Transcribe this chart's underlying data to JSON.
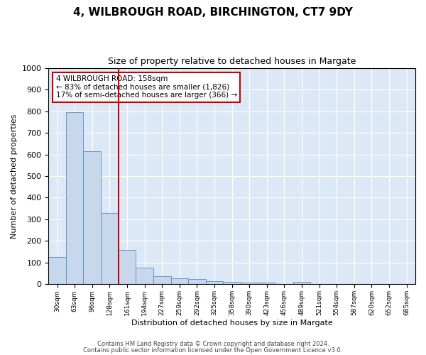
{
  "title_line1": "4, WILBROUGH ROAD, BIRCHINGTON, CT7 9DY",
  "title_line2": "Size of property relative to detached houses in Margate",
  "xlabel": "Distribution of detached houses by size in Margate",
  "ylabel": "Number of detached properties",
  "bar_color": "#c8d8ec",
  "bar_edge_color": "#5590c0",
  "bg_color": "#dce8f5",
  "grid_color": "#ffffff",
  "vline_x": 4,
  "vline_color": "#cc0000",
  "annotation_text": "4 WILBROUGH ROAD: 158sqm\n← 83% of detached houses are smaller (1,826)\n17% of semi-detached houses are larger (366) →",
  "annotation_box_color": "#cc0000",
  "categories": [
    "30sqm",
    "63sqm",
    "96sqm",
    "128sqm",
    "161sqm",
    "194sqm",
    "227sqm",
    "259sqm",
    "292sqm",
    "325sqm",
    "358sqm",
    "390sqm",
    "423sqm",
    "456sqm",
    "489sqm",
    "521sqm",
    "554sqm",
    "587sqm",
    "620sqm",
    "652sqm",
    "685sqm"
  ],
  "heights": [
    125,
    795,
    615,
    330,
    160,
    78,
    38,
    27,
    24,
    15,
    12,
    8,
    8,
    0,
    10,
    0,
    0,
    0,
    0,
    0,
    0
  ],
  "ylim": [
    0,
    1000
  ],
  "yticks": [
    0,
    100,
    200,
    300,
    400,
    500,
    600,
    700,
    800,
    900,
    1000
  ],
  "footer_line1": "Contains HM Land Registry data © Crown copyright and database right 2024.",
  "footer_line2": "Contains public sector information licensed under the Open Government Licence v3.0."
}
